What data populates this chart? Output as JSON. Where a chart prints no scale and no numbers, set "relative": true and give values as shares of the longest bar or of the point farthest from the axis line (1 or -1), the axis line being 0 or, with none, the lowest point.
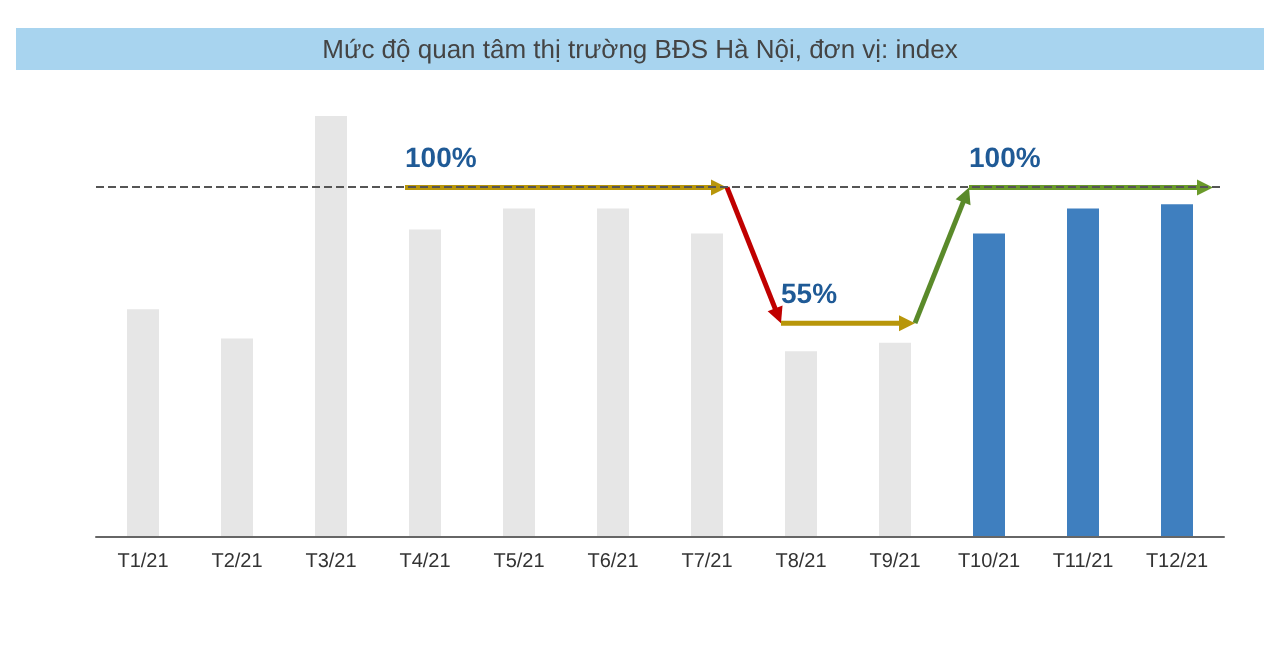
{
  "chart_data": {
    "type": "bar",
    "title": "Mức độ quan tâm thị trường BĐS Hà Nội, đơn vị: index",
    "relative": true,
    "categories": [
      "T1/21",
      "T2/21",
      "T3/21",
      "T4/21",
      "T5/21",
      "T6/21",
      "T7/21",
      "T8/21",
      "T9/21",
      "T10/21",
      "T11/21",
      "T12/21"
    ],
    "values": [
      0.54,
      0.47,
      1,
      0.73,
      0.78,
      0.78,
      0.72,
      0.44,
      0.46,
      0.72,
      0.78,
      0.79
    ],
    "colors": [
      "#e6e6e6",
      "#e6e6e6",
      "#e6e6e6",
      "#e6e6e6",
      "#e6e6e6",
      "#e6e6e6",
      "#e6e6e6",
      "#e6e6e6",
      "#e6e6e6",
      "#3f7fbf",
      "#3f7fbf",
      "#3f7fbf"
    ],
    "ref_lines": [
      {
        "axis": "y",
        "value": 0.83,
        "color": "#555555",
        "line_style": "dashed"
      }
    ],
    "annotations": [
      {
        "text": "100%",
        "x": "T4/21",
        "y": 0.83
      },
      {
        "text": "55%",
        "x": "T8/21",
        "y": 0.44
      },
      {
        "text": "100%",
        "x": "T10/21",
        "y": 0.83
      }
    ]
  }
}
